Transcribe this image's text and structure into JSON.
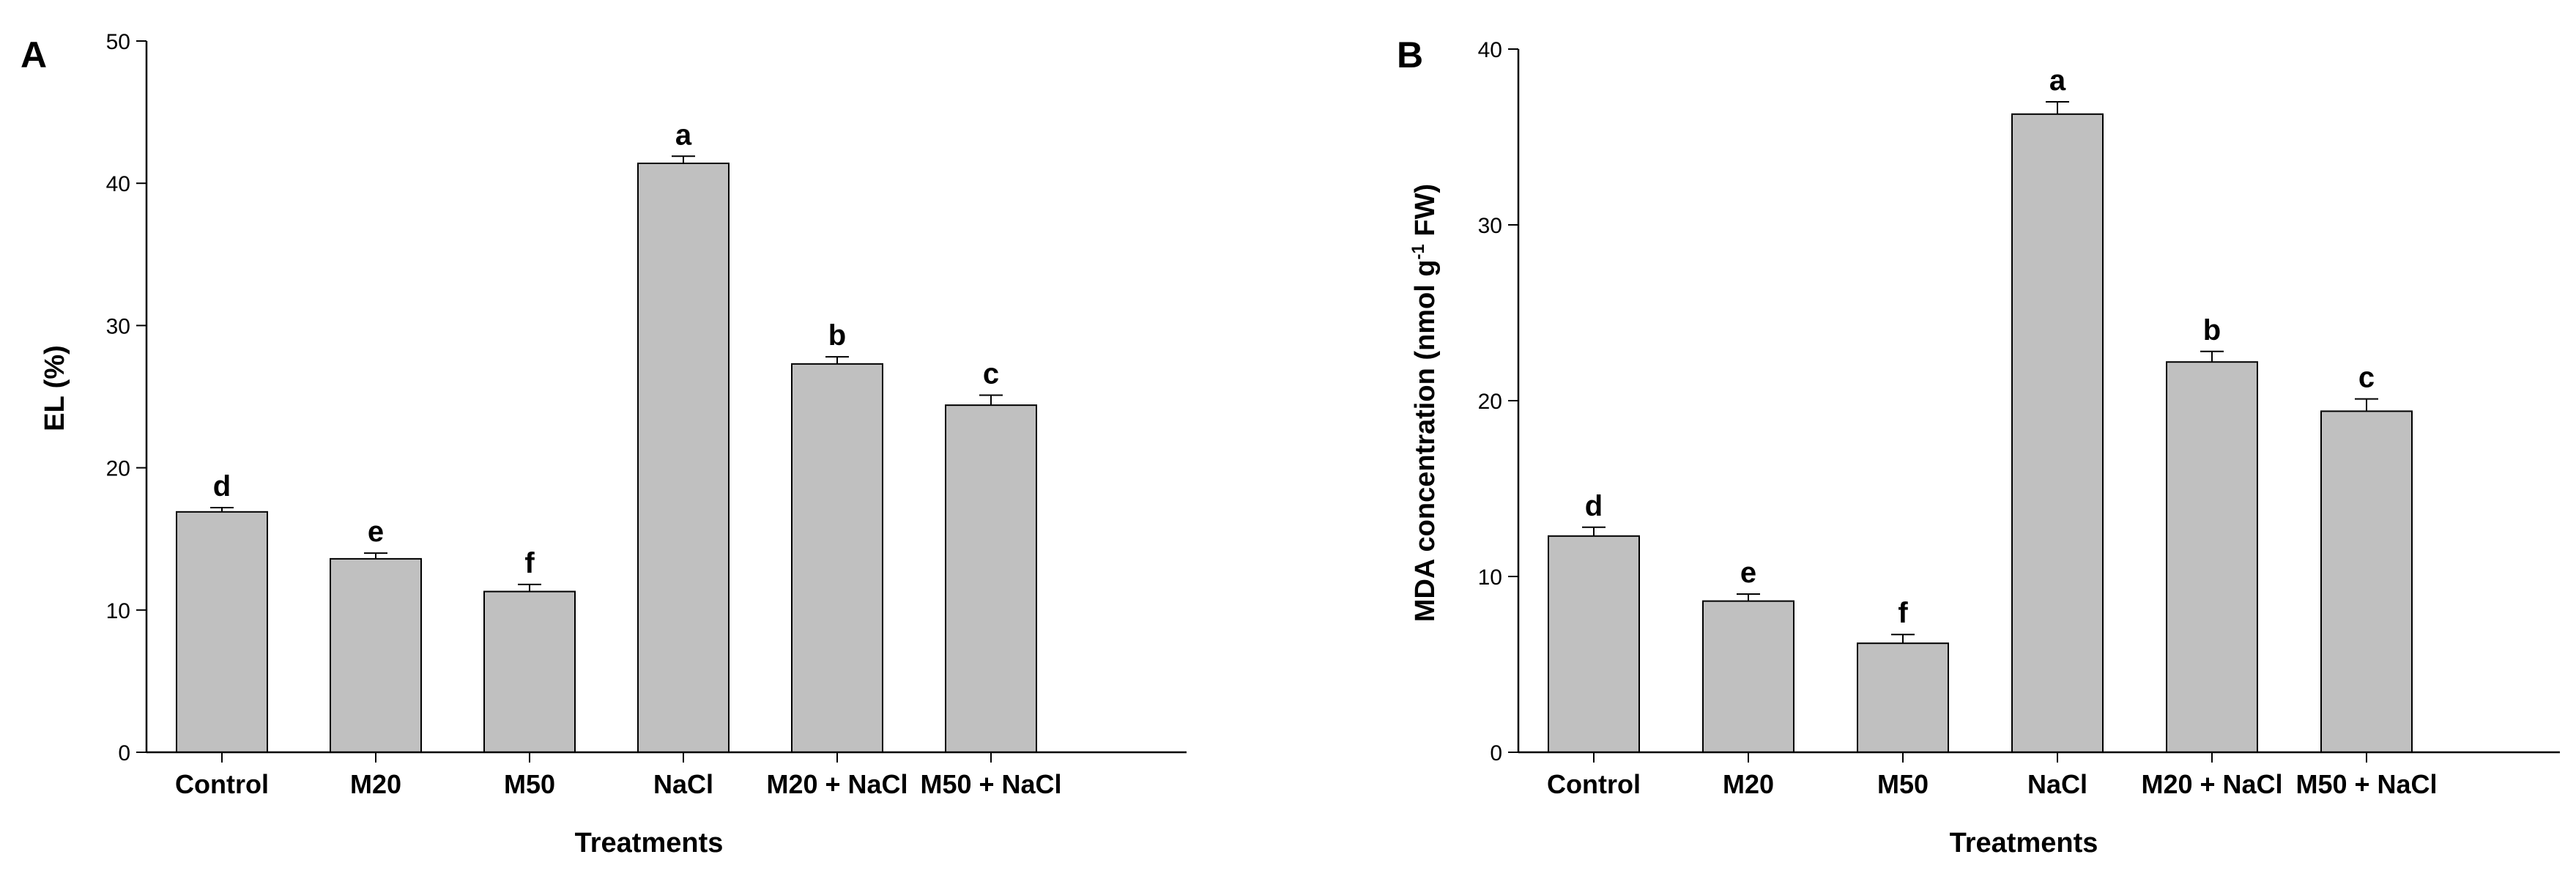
{
  "colors": {
    "bar_fill": "#c0c0c0",
    "bar_stroke": "#000000",
    "axis": "#000000"
  },
  "chart_data": [
    {
      "type": "bar",
      "panel_label": "A",
      "title": "",
      "xlabel": "Treatments",
      "ylabel": "EL (%)",
      "ylim": [
        0,
        50
      ],
      "yticks": [
        0,
        10,
        20,
        30,
        40,
        50
      ],
      "categories": [
        "Control",
        "M20",
        "M50",
        "NaCl",
        "M20 + NaCl",
        "M50 + NaCl"
      ],
      "values": [
        16.9,
        13.6,
        11.3,
        41.4,
        27.3,
        24.4
      ],
      "errors": [
        0.3,
        0.4,
        0.5,
        0.5,
        0.5,
        0.7
      ],
      "significance": [
        "d",
        "e",
        "f",
        "a",
        "b",
        "c"
      ]
    },
    {
      "type": "bar",
      "panel_label": "B",
      "title": "",
      "xlabel": "Treatments",
      "ylabel_parts": {
        "main": "MDA concentration (nmol g",
        "sup": "-1",
        "tail": " FW)"
      },
      "ylim": [
        0,
        40
      ],
      "yticks": [
        0,
        10,
        20,
        30,
        40
      ],
      "categories": [
        "Control",
        "M20",
        "M50",
        "NaCl",
        "M20 + NaCl",
        "M50 + NaCl"
      ],
      "values": [
        12.3,
        8.6,
        6.2,
        36.3,
        22.2,
        19.4
      ],
      "errors": [
        0.5,
        0.4,
        0.5,
        0.7,
        0.6,
        0.7
      ],
      "significance": [
        "d",
        "e",
        "f",
        "a",
        "b",
        "c"
      ]
    }
  ]
}
